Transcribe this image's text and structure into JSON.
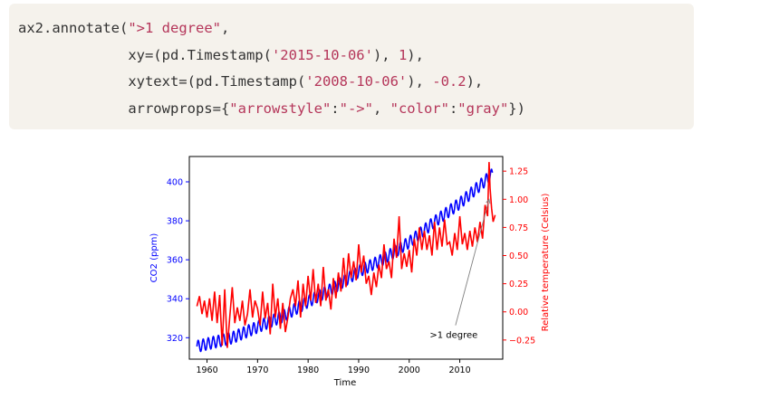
{
  "code": {
    "lines": [
      [
        {
          "t": "ax2.annotate(",
          "c": "plain"
        },
        {
          "t": "\">1 degree\"",
          "c": "str"
        },
        {
          "t": ",",
          "c": "plain"
        }
      ],
      [
        {
          "t": "             xy=(pd.Timestamp(",
          "c": "plain"
        },
        {
          "t": "'2015-10-06'",
          "c": "str"
        },
        {
          "t": "), ",
          "c": "plain"
        },
        {
          "t": "1",
          "c": "num"
        },
        {
          "t": "),",
          "c": "plain"
        }
      ],
      [
        {
          "t": "             xytext=(pd.Timestamp(",
          "c": "plain"
        },
        {
          "t": "'2008-10-06'",
          "c": "str"
        },
        {
          "t": "), ",
          "c": "plain"
        },
        {
          "t": "-0.2",
          "c": "num"
        },
        {
          "t": "),",
          "c": "plain"
        }
      ],
      [
        {
          "t": "             arrowprops={",
          "c": "plain"
        },
        {
          "t": "\"arrowstyle\"",
          "c": "str"
        },
        {
          "t": ":",
          "c": "plain"
        },
        {
          "t": "\"->\"",
          "c": "str"
        },
        {
          "t": ", ",
          "c": "plain"
        },
        {
          "t": "\"color\"",
          "c": "str"
        },
        {
          "t": ":",
          "c": "plain"
        },
        {
          "t": "\"gray\"",
          "c": "str"
        },
        {
          "t": "})",
          "c": "plain"
        }
      ]
    ]
  },
  "chart_data": {
    "type": "line",
    "xlabel": "Time",
    "ylabel": "CO2 (ppm)",
    "ylabel_right": "Relative temperature (Celsius)",
    "xlim": [
      1956.5,
      2018.5
    ],
    "xticks": [
      1960,
      1970,
      1980,
      1990,
      2000,
      2010
    ],
    "ylim": [
      309,
      413
    ],
    "yticks": [
      320,
      340,
      360,
      380,
      400
    ],
    "ylim_right": [
      -0.42,
      1.38
    ],
    "yticks_right": [
      -0.25,
      0.0,
      0.25,
      0.5,
      0.75,
      1.0,
      1.25
    ],
    "yticks_right_labels": [
      "−0.25",
      "0.00",
      "0.25",
      "0.50",
      "0.75",
      "1.00",
      "1.25"
    ],
    "colors": {
      "co2": "#0000ff",
      "temp": "#ff0000",
      "annotation": "#808080",
      "axis": "#000000"
    },
    "series": [
      {
        "axis": "left",
        "color": "#0000ff",
        "trend_x": [
          1958,
          1965,
          1970,
          1975,
          1980,
          1985,
          1990,
          1995,
          2000,
          2005,
          2010,
          2015,
          2016.5
        ],
        "trend_y": [
          315.5,
          320,
          325.5,
          331,
          338.5,
          345.5,
          354,
          360.5,
          369,
          379.5,
          389,
          400.5,
          404
        ],
        "seasonal_amplitude": 3
      },
      {
        "axis": "right",
        "color": "#ff0000",
        "x": [
          1958,
          1958.5,
          1959,
          1959.5,
          1960,
          1960.5,
          1961,
          1961.5,
          1962,
          1962.5,
          1963,
          1963.5,
          1964,
          1964.5,
          1965,
          1965.5,
          1966,
          1966.5,
          1967,
          1967.5,
          1968,
          1968.5,
          1969,
          1969.5,
          1970,
          1970.5,
          1971,
          1971.5,
          1972,
          1972.5,
          1973,
          1973.5,
          1974,
          1974.5,
          1975,
          1975.5,
          1976,
          1976.5,
          1977,
          1977.5,
          1978,
          1978.5,
          1979,
          1979.5,
          1980,
          1980.5,
          1981,
          1981.5,
          1982,
          1982.5,
          1983,
          1983.5,
          1984,
          1984.5,
          1985,
          1985.5,
          1986,
          1986.5,
          1987,
          1987.5,
          1988,
          1988.5,
          1989,
          1989.5,
          1990,
          1990.5,
          1991,
          1991.5,
          1992,
          1992.5,
          1993,
          1993.5,
          1994,
          1994.5,
          1995,
          1995.5,
          1996,
          1996.5,
          1997,
          1997.5,
          1998,
          1998.5,
          1999,
          1999.5,
          2000,
          2000.5,
          2001,
          2001.5,
          2002,
          2002.5,
          2003,
          2003.5,
          2004,
          2004.5,
          2005,
          2005.5,
          2006,
          2006.5,
          2007,
          2007.5,
          2008,
          2008.5,
          2009,
          2009.5,
          2010,
          2010.5,
          2011,
          2011.5,
          2012,
          2012.5,
          2013,
          2013.5,
          2014,
          2014.5,
          2015,
          2015.5,
          2015.8,
          2016,
          2016.3,
          2016.6,
          2017
        ],
        "y": [
          0.05,
          0.14,
          -0.02,
          0.1,
          -0.05,
          0.12,
          -0.08,
          0.18,
          -0.1,
          0.15,
          -0.3,
          0.2,
          -0.32,
          -0.05,
          0.22,
          -0.1,
          0.04,
          -0.08,
          0.1,
          -0.12,
          -0.02,
          0.2,
          -0.05,
          0.1,
          0.03,
          -0.12,
          0.18,
          -0.06,
          0.08,
          -0.2,
          0.25,
          -0.05,
          0.12,
          -0.15,
          0.08,
          -0.18,
          -0.05,
          0.12,
          0.2,
          0.05,
          0.28,
          -0.05,
          0.25,
          0.05,
          0.32,
          0.1,
          0.38,
          0.08,
          0.25,
          0.05,
          0.4,
          0.1,
          0.2,
          0.02,
          0.3,
          0.12,
          0.35,
          0.18,
          0.48,
          0.22,
          0.52,
          0.3,
          0.45,
          0.28,
          0.6,
          0.35,
          0.5,
          0.25,
          0.32,
          0.15,
          0.35,
          0.22,
          0.42,
          0.3,
          0.6,
          0.38,
          0.45,
          0.3,
          0.65,
          0.48,
          0.85,
          0.38,
          0.52,
          0.4,
          0.55,
          0.35,
          0.65,
          0.5,
          0.75,
          0.55,
          0.72,
          0.55,
          0.68,
          0.5,
          0.8,
          0.55,
          0.75,
          0.58,
          0.82,
          0.6,
          0.62,
          0.5,
          0.7,
          0.55,
          0.85,
          0.6,
          0.7,
          0.55,
          0.72,
          0.58,
          0.75,
          0.62,
          0.8,
          0.65,
          0.95,
          0.85,
          1.33,
          1.1,
          0.92,
          0.8,
          0.86
        ]
      }
    ],
    "annotation": {
      "text": ">1 degree",
      "xy": [
        2015.8,
        1.0
      ],
      "xytext": [
        2008.8,
        -0.2
      ]
    }
  }
}
